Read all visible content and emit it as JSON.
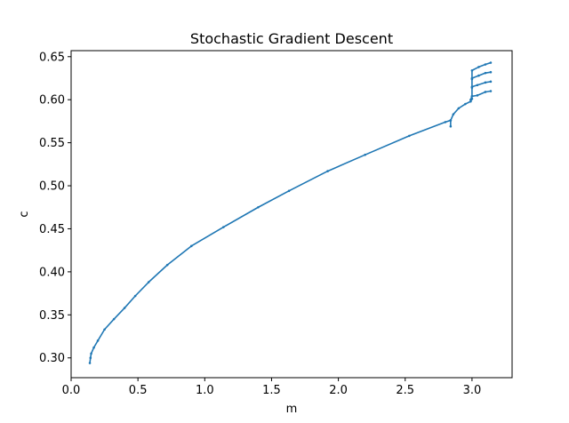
{
  "chart_data": {
    "type": "line",
    "title": "Stochastic Gradient Descent",
    "xlabel": "m",
    "ylabel": "c",
    "xlim": [
      0.0,
      3.3
    ],
    "ylim": [
      0.277,
      0.657
    ],
    "xticks": [
      0.0,
      0.5,
      1.0,
      1.5,
      2.0,
      2.5,
      3.0
    ],
    "xtick_labels": [
      "0.0",
      "0.5",
      "1.0",
      "1.5",
      "2.0",
      "2.5",
      "3.0"
    ],
    "yticks": [
      0.3,
      0.35,
      0.4,
      0.45,
      0.5,
      0.55,
      0.6,
      0.65
    ],
    "ytick_labels": [
      "0.30",
      "0.35",
      "0.40",
      "0.45",
      "0.50",
      "0.55",
      "0.60",
      "0.65"
    ],
    "grid": false,
    "color": "#1f77b4",
    "series": [
      {
        "values": [
          [
            0.14,
            0.294
          ],
          [
            0.145,
            0.3
          ],
          [
            0.15,
            0.305
          ],
          [
            0.17,
            0.312
          ],
          [
            0.2,
            0.32
          ],
          [
            0.25,
            0.333
          ],
          [
            0.32,
            0.345
          ],
          [
            0.4,
            0.358
          ],
          [
            0.48,
            0.372
          ],
          [
            0.58,
            0.388
          ],
          [
            0.72,
            0.408
          ],
          [
            0.9,
            0.43
          ],
          [
            1.14,
            0.452
          ],
          [
            1.4,
            0.475
          ],
          [
            1.63,
            0.494
          ],
          [
            1.92,
            0.517
          ],
          [
            2.2,
            0.536
          ],
          [
            2.53,
            0.558
          ],
          [
            2.8,
            0.574
          ],
          [
            2.84,
            0.576
          ]
        ]
      },
      {
        "values": [
          [
            2.84,
            0.569
          ],
          [
            2.84,
            0.576
          ],
          [
            2.86,
            0.583
          ],
          [
            2.9,
            0.59
          ],
          [
            2.95,
            0.595
          ],
          [
            2.99,
            0.598
          ],
          [
            3.0,
            0.601
          ]
        ]
      },
      {
        "values": [
          [
            2.99,
            0.6
          ],
          [
            3.0,
            0.604
          ],
          [
            3.04,
            0.605
          ],
          [
            3.1,
            0.609
          ],
          [
            3.14,
            0.61
          ]
        ]
      },
      {
        "values": [
          [
            3.0,
            0.604
          ],
          [
            3.0,
            0.615
          ],
          [
            3.04,
            0.617
          ],
          [
            3.1,
            0.62
          ],
          [
            3.14,
            0.621
          ]
        ]
      },
      {
        "values": [
          [
            3.0,
            0.614
          ],
          [
            3.0,
            0.625
          ],
          [
            3.05,
            0.628
          ],
          [
            3.1,
            0.631
          ],
          [
            3.14,
            0.632
          ]
        ]
      },
      {
        "values": [
          [
            3.0,
            0.624
          ],
          [
            3.0,
            0.634
          ],
          [
            3.05,
            0.638
          ],
          [
            3.1,
            0.641
          ],
          [
            3.14,
            0.643
          ]
        ]
      }
    ]
  }
}
